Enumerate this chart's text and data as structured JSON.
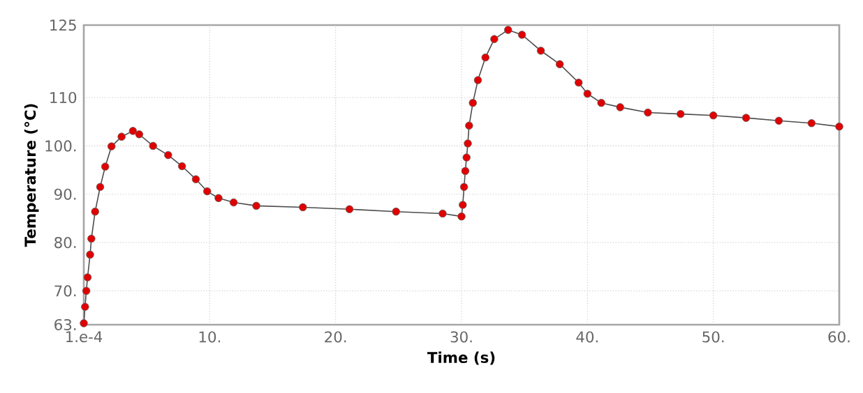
{
  "chart_data": {
    "type": "line",
    "xlabel": "Time (s)",
    "ylabel": "Temperature (°C)",
    "xlim": [
      0.0001,
      60
    ],
    "ylim": [
      63,
      125
    ],
    "xticks": [
      {
        "value": 0.0001,
        "label": "1.e-4"
      },
      {
        "value": 10,
        "label": "10."
      },
      {
        "value": 20,
        "label": "20."
      },
      {
        "value": 30,
        "label": "30."
      },
      {
        "value": 40,
        "label": "40."
      },
      {
        "value": 50,
        "label": "50."
      },
      {
        "value": 60,
        "label": "60."
      }
    ],
    "yticks": [
      {
        "value": 63,
        "label": "63."
      },
      {
        "value": 70,
        "label": "70."
      },
      {
        "value": 80,
        "label": "80."
      },
      {
        "value": 90,
        "label": "90."
      },
      {
        "value": 100,
        "label": "100."
      },
      {
        "value": 110,
        "label": "110"
      },
      125
    ],
    "grid": true,
    "marker": "circle",
    "line_style": "solid",
    "x": [
      0.0001,
      0.1,
      0.2,
      0.3,
      0.5,
      0.6,
      0.9,
      1.3,
      1.7,
      2.2,
      3.0,
      3.9,
      4.4,
      5.5,
      6.7,
      7.8,
      8.9,
      9.8,
      10.7,
      11.9,
      13.7,
      17.4,
      21.1,
      24.8,
      28.5,
      30.0,
      30.1,
      30.2,
      30.3,
      30.4,
      30.5,
      30.6,
      30.9,
      31.3,
      31.9,
      32.6,
      33.7,
      34.8,
      36.3,
      37.8,
      39.3,
      40.0,
      41.1,
      42.6,
      44.8,
      47.4,
      50.0,
      52.6,
      55.2,
      57.8,
      60.0
    ],
    "series": [
      {
        "color": "#e00000",
        "values": [
          63.3,
          66.7,
          70,
          72.8,
          77.5,
          80.8,
          86.4,
          91.5,
          95.7,
          99.9,
          101.9,
          103.1,
          102.4,
          100,
          98.1,
          95.8,
          93.1,
          90.6,
          89.2,
          88.3,
          87.6,
          87.3,
          86.9,
          86.4,
          86.0,
          85.4,
          87.8,
          91.5,
          94.8,
          97.6,
          100.5,
          104.2,
          108.9,
          113.6,
          118.3,
          122.1,
          124,
          123,
          119.7,
          116.9,
          113.1,
          110.8,
          108.9,
          108,
          106.9,
          106.6,
          106.3,
          105.8,
          105.2,
          104.7,
          104
        ]
      }
    ]
  }
}
